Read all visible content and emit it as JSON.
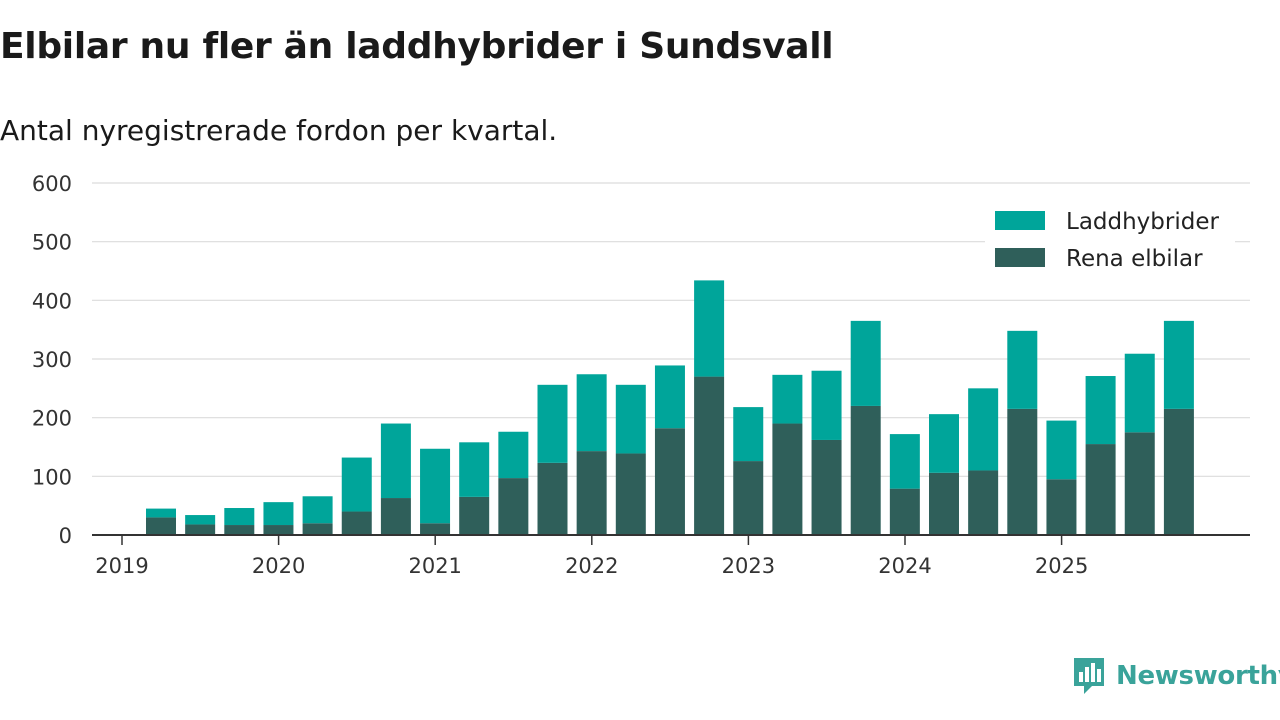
{
  "title": "Elbilar nu fler än laddhybrider i Sundsvall",
  "subtitle": "Antal nyregistrerade fordon per kvartal.",
  "brand": "Newsworthy",
  "colors": {
    "hybrid": "#00a59a",
    "electric": "#2f5f5a",
    "grid": "#dcdcdc",
    "axis": "#333333",
    "brand": "#3aa39a"
  },
  "chart_data": {
    "type": "bar",
    "stacked": true,
    "ylim": [
      0,
      600
    ],
    "yticks": [
      0,
      100,
      200,
      300,
      400,
      500,
      600
    ],
    "year_labels": [
      "2019",
      "2020",
      "2021",
      "2022",
      "2023",
      "2024",
      "2025"
    ],
    "legend_position": "top-right",
    "categories": [
      "2019 Q2",
      "2019 Q3",
      "2019 Q4",
      "2020 Q1",
      "2020 Q2",
      "2020 Q3",
      "2020 Q4",
      "2021 Q1",
      "2021 Q2",
      "2021 Q3",
      "2021 Q4",
      "2022 Q1",
      "2022 Q2",
      "2022 Q3",
      "2022 Q4",
      "2023 Q1",
      "2023 Q2",
      "2023 Q3",
      "2023 Q4",
      "2024 Q1",
      "2024 Q2",
      "2024 Q3",
      "2024 Q4",
      "2025 Q1",
      "2025 Q2",
      "2025 Q3",
      "2025 Q4"
    ],
    "series": [
      {
        "name": "Rena elbilar",
        "values": [
          30,
          18,
          17,
          17,
          20,
          40,
          63,
          20,
          65,
          97,
          123,
          143,
          139,
          182,
          270,
          126,
          190,
          162,
          220,
          79,
          106,
          110,
          215,
          95,
          155,
          175,
          215
        ]
      },
      {
        "name": "Laddhybrider",
        "values": [
          15,
          16,
          29,
          39,
          46,
          92,
          127,
          127,
          93,
          79,
          133,
          131,
          117,
          107,
          164,
          92,
          83,
          118,
          145,
          93,
          100,
          140,
          133,
          100,
          116,
          134,
          150
        ]
      }
    ]
  }
}
